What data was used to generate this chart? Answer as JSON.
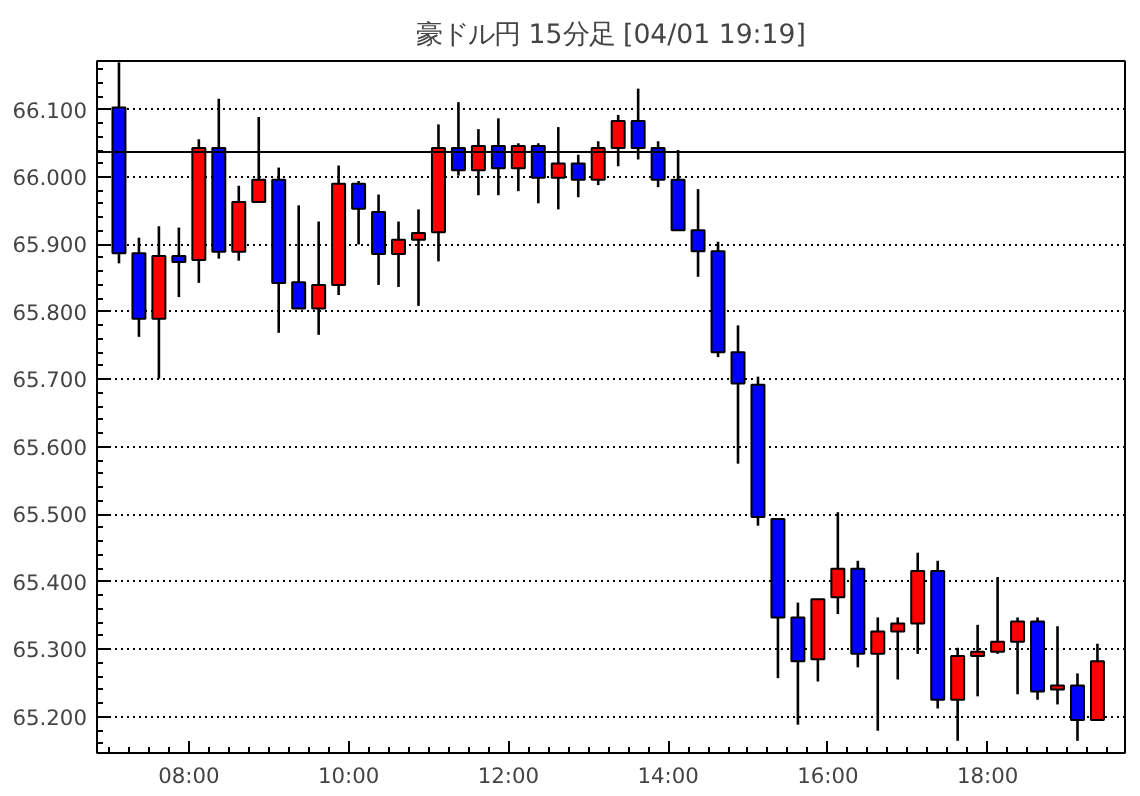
{
  "chart_data": {
    "type": "candlestick",
    "title": "豪ドル円 15分足 [04/01 19:19]",
    "x": [
      7.125,
      7.375,
      7.625,
      7.875,
      8.125,
      8.375,
      8.625,
      8.875,
      9.125,
      9.375,
      9.625,
      9.875,
      10.125,
      10.375,
      10.625,
      10.875,
      11.125,
      11.375,
      11.625,
      11.875,
      12.125,
      12.375,
      12.625,
      12.875,
      13.125,
      13.375,
      13.625,
      13.875,
      14.125,
      14.375,
      14.625,
      14.875,
      15.125,
      15.375,
      15.625,
      15.875,
      16.125,
      16.375,
      16.625,
      16.875,
      17.125,
      17.375,
      17.625,
      17.875,
      18.125,
      18.375,
      18.625,
      18.875,
      19.125,
      19.375
    ],
    "ohlc": [
      [
        66.103,
        66.17,
        65.872,
        65.887
      ],
      [
        65.887,
        65.91,
        65.763,
        65.79
      ],
      [
        65.79,
        65.927,
        65.701,
        65.883
      ],
      [
        65.883,
        65.925,
        65.822,
        65.874
      ],
      [
        65.877,
        66.056,
        65.843,
        66.043
      ],
      [
        66.043,
        66.116,
        65.879,
        65.889
      ],
      [
        65.889,
        65.987,
        65.876,
        65.963
      ],
      [
        65.963,
        66.089,
        65.963,
        65.996
      ],
      [
        65.996,
        66.014,
        65.769,
        65.843
      ],
      [
        65.844,
        65.958,
        65.805,
        65.805
      ],
      [
        65.805,
        65.934,
        65.766,
        65.84
      ],
      [
        65.84,
        66.017,
        65.825,
        65.99
      ],
      [
        65.99,
        65.994,
        65.9,
        65.953
      ],
      [
        65.948,
        65.974,
        65.84,
        65.886
      ],
      [
        65.886,
        65.934,
        65.837,
        65.907
      ],
      [
        65.907,
        65.952,
        65.809,
        65.917
      ],
      [
        65.918,
        66.078,
        65.875,
        66.043
      ],
      [
        66.043,
        66.111,
        66.002,
        66.01
      ],
      [
        66.01,
        66.071,
        65.973,
        66.046
      ],
      [
        66.046,
        66.087,
        65.973,
        66.013
      ],
      [
        66.013,
        66.05,
        65.979,
        66.046
      ],
      [
        66.046,
        66.05,
        65.961,
        65.999
      ],
      [
        65.999,
        66.074,
        65.952,
        66.02
      ],
      [
        66.02,
        66.033,
        65.97,
        65.996
      ],
      [
        65.996,
        66.053,
        65.988,
        66.043
      ],
      [
        66.043,
        66.092,
        66.016,
        66.083
      ],
      [
        66.083,
        66.131,
        66.026,
        66.043
      ],
      [
        66.043,
        66.053,
        65.985,
        65.996
      ],
      [
        65.996,
        66.04,
        65.921,
        65.921
      ],
      [
        65.921,
        65.982,
        65.852,
        65.89
      ],
      [
        65.89,
        65.904,
        65.733,
        65.74
      ],
      [
        65.74,
        65.78,
        65.575,
        65.694
      ],
      [
        65.692,
        65.704,
        65.483,
        65.496
      ],
      [
        65.493,
        65.493,
        65.257,
        65.347
      ],
      [
        65.347,
        65.369,
        65.188,
        65.282
      ],
      [
        65.285,
        65.374,
        65.252,
        65.374
      ],
      [
        65.377,
        65.503,
        65.352,
        65.419
      ],
      [
        65.419,
        65.431,
        65.273,
        65.293
      ],
      [
        65.293,
        65.347,
        65.179,
        65.326
      ],
      [
        65.326,
        65.347,
        65.255,
        65.338
      ],
      [
        65.338,
        65.443,
        65.293,
        65.416
      ],
      [
        65.416,
        65.431,
        65.212,
        65.225
      ],
      [
        65.225,
        65.302,
        65.164,
        65.29
      ],
      [
        65.29,
        65.336,
        65.23,
        65.296
      ],
      [
        65.296,
        65.407,
        65.293,
        65.311
      ],
      [
        65.311,
        65.347,
        65.233,
        65.341
      ],
      [
        65.341,
        65.347,
        65.225,
        65.237
      ],
      [
        65.24,
        65.334,
        65.218,
        65.246
      ],
      [
        65.246,
        65.264,
        65.164,
        65.195
      ],
      [
        65.195,
        65.308,
        65.195,
        65.282
      ]
    ],
    "colors": [
      "#0000ff",
      "#0000ff",
      "#ff0000",
      "#0000ff",
      "#ff0000",
      "#0000ff",
      "#ff0000",
      "#ff0000",
      "#0000ff",
      "#0000ff",
      "#ff0000",
      "#ff0000",
      "#0000ff",
      "#0000ff",
      "#ff0000",
      "#ff0000",
      "#ff0000",
      "#0000ff",
      "#ff0000",
      "#0000ff",
      "#ff0000",
      "#0000ff",
      "#ff0000",
      "#0000ff",
      "#ff0000",
      "#ff0000",
      "#0000ff",
      "#0000ff",
      "#0000ff",
      "#0000ff",
      "#0000ff",
      "#0000ff",
      "#0000ff",
      "#0000ff",
      "#0000ff",
      "#ff0000",
      "#ff0000",
      "#0000ff",
      "#ff0000",
      "#ff0000",
      "#ff0000",
      "#0000ff",
      "#ff0000",
      "#ff0000",
      "#ff0000",
      "#ff0000",
      "#0000ff",
      "#ff0000",
      "#0000ff",
      "#ff0000"
    ],
    "xlim": [
      6.85,
      19.72
    ],
    "ylim": [
      65.146,
      66.172
    ],
    "xticks": [
      {
        "value": 8,
        "label": "08:00"
      },
      {
        "value": 10,
        "label": "10:00"
      },
      {
        "value": 12,
        "label": "12:00"
      },
      {
        "value": 14,
        "label": "14:00"
      },
      {
        "value": 16,
        "label": "16:00"
      },
      {
        "value": 18,
        "label": "18:00"
      }
    ],
    "yticks": [
      {
        "value": 65.2,
        "label": "65.200"
      },
      {
        "value": 65.3,
        "label": "65.300"
      },
      {
        "value": 65.4,
        "label": "65.400"
      },
      {
        "value": 65.5,
        "label": "65.500"
      },
      {
        "value": 65.6,
        "label": "65.600"
      },
      {
        "value": 65.7,
        "label": "65.700"
      },
      {
        "value": 65.8,
        "label": "65.800"
      },
      {
        "value": 65.9,
        "label": "65.900"
      },
      {
        "value": 66.0,
        "label": "66.000"
      },
      {
        "value": 66.1,
        "label": "66.100"
      }
    ],
    "ref_lines": [
      {
        "axis": "y",
        "value": 66.037,
        "label": null,
        "color": "#000000",
        "line_style": "solid"
      }
    ],
    "grid": "y"
  }
}
